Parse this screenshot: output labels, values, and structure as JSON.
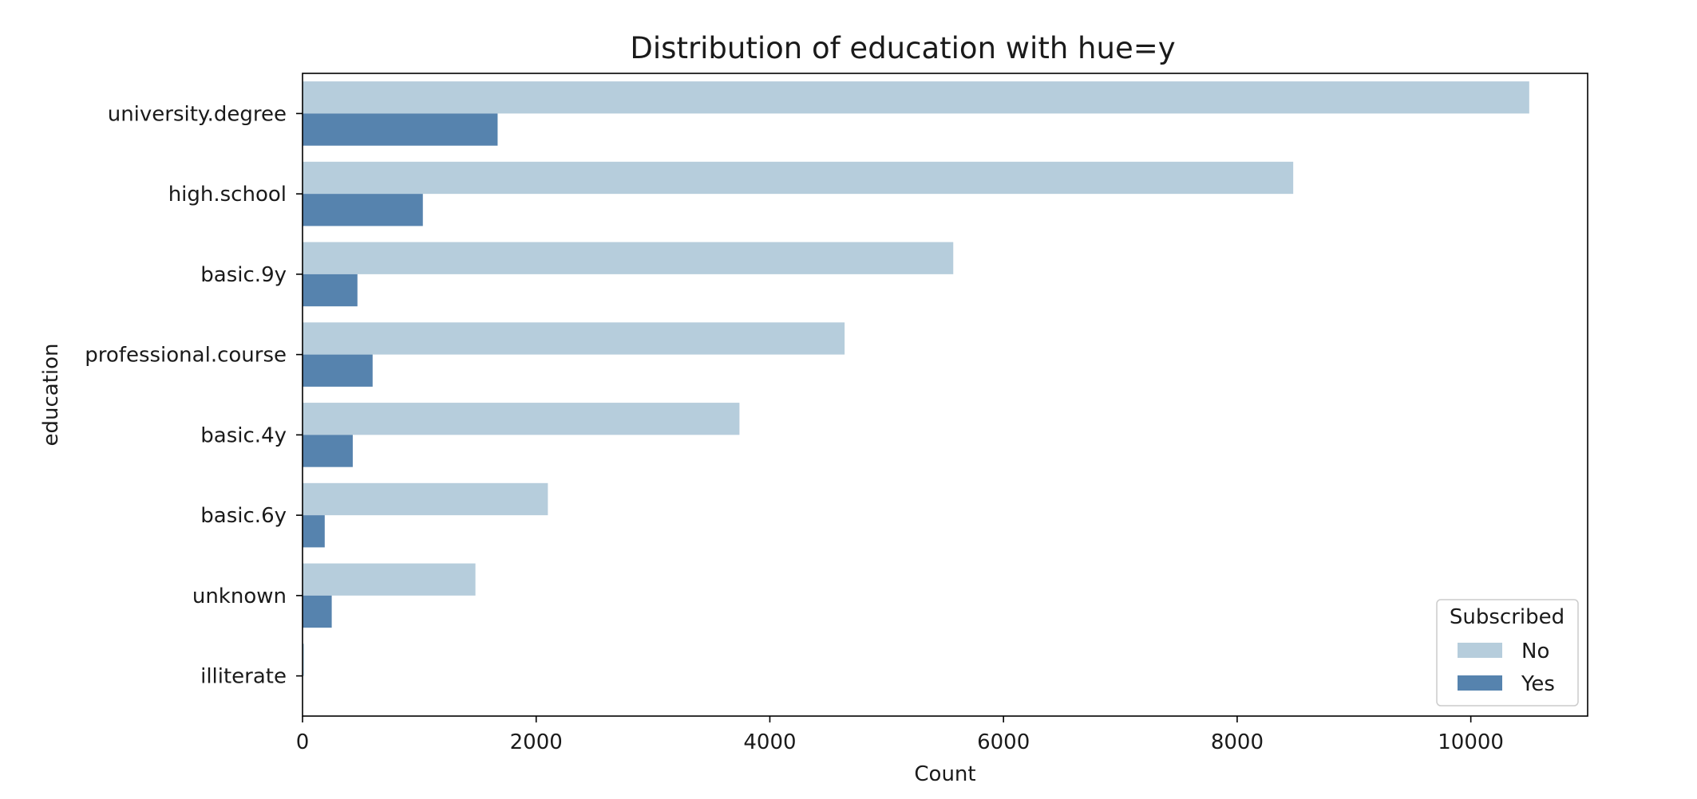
{
  "chart_data": {
    "type": "bar",
    "orientation": "horizontal",
    "title": "Distribution of education with hue=y",
    "xlabel": "Count",
    "ylabel": "education",
    "xlim": [
      0,
      11000
    ],
    "xticks": [
      0,
      2000,
      4000,
      6000,
      8000,
      10000
    ],
    "xtick_labels": [
      "0",
      "2000",
      "4000",
      "6000",
      "8000",
      "10000"
    ],
    "grid": false,
    "categories": [
      "university.degree",
      "high.school",
      "basic.9y",
      "professional.course",
      "basic.4y",
      "basic.6y",
      "unknown",
      "illiterate"
    ],
    "series": [
      {
        "name": "No",
        "color": "#b6cddc",
        "values": [
          10500,
          8480,
          5570,
          4640,
          3740,
          2100,
          1480,
          14
        ]
      },
      {
        "name": "Yes",
        "color": "#5683ae",
        "values": [
          1670,
          1030,
          470,
          600,
          430,
          190,
          250,
          4
        ]
      }
    ],
    "legend": {
      "title": "Subscribed",
      "position": "lower-right"
    }
  }
}
